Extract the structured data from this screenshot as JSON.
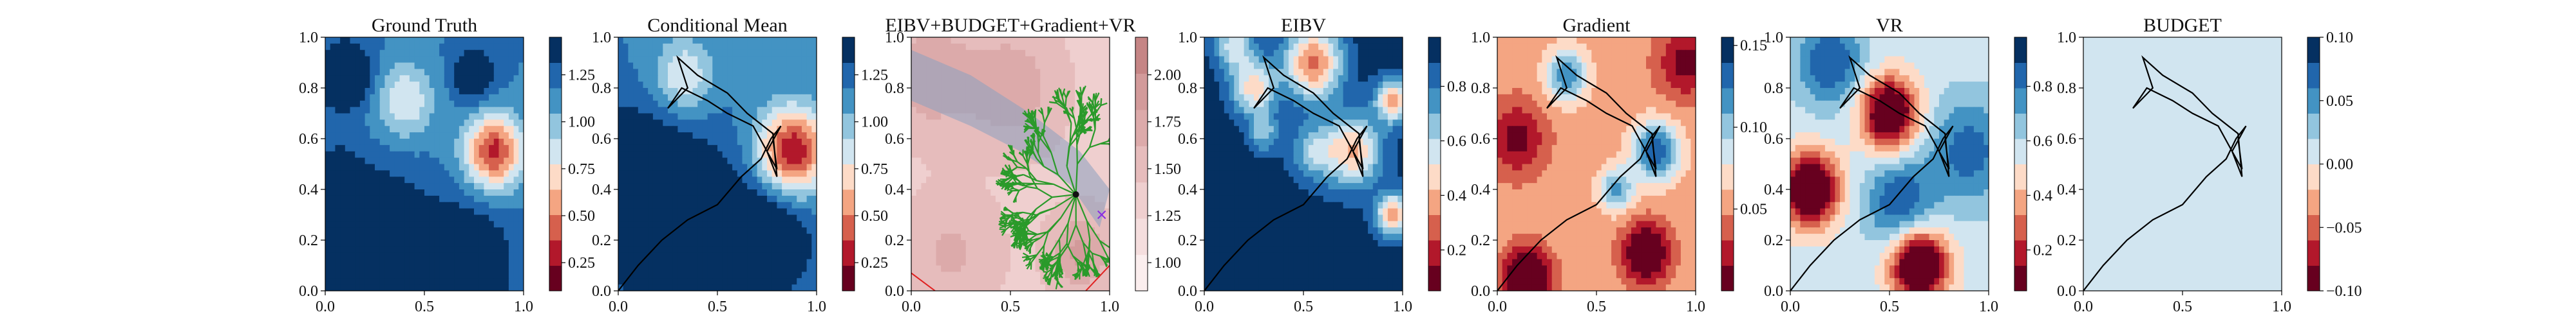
{
  "chart_data": [
    {
      "type": "heatmap",
      "title": "Ground Truth",
      "xlim": [
        0,
        1
      ],
      "ylim": [
        0,
        1
      ],
      "xticks": [
        "0.0",
        "0.5",
        "1.0"
      ],
      "yticks": [
        "0.0",
        "0.2",
        "0.4",
        "0.6",
        "0.8",
        "1.0"
      ],
      "colorbar": {
        "range": [
          0.1,
          1.45
        ],
        "ticks": [
          "0.25",
          "0.50",
          "0.75",
          "1.00",
          "1.25"
        ],
        "tick_values": [
          0.25,
          0.5,
          0.75,
          1.0,
          1.25
        ],
        "colormap": "RdBu"
      },
      "field": [
        {
          "x": 0.85,
          "y": 0.55,
          "v": -0.65,
          "s": 0.1
        },
        {
          "x": 0.75,
          "y": 0.85,
          "v": 0.3,
          "s": 0.07
        },
        {
          "x": 0.4,
          "y": 0.75,
          "v": -0.3,
          "s": 0.1
        },
        {
          "x": 0.1,
          "y": 0.85,
          "v": 0.35,
          "s": 0.09
        },
        {
          "x": 0.25,
          "y": 0.15,
          "v": 0.5,
          "s": 0.18
        },
        {
          "x": 0.7,
          "y": 0.1,
          "v": 0.35,
          "s": 0.15
        },
        {
          "x": 0.05,
          "y": 0.45,
          "v": 0.15,
          "s": 0.1
        }
      ],
      "field_base": 0.8,
      "path": []
    },
    {
      "type": "heatmap",
      "title": "Conditional Mean",
      "xlim": [
        0,
        1
      ],
      "ylim": [
        0,
        1
      ],
      "xticks": [
        "0.0",
        "0.5",
        "1.0"
      ],
      "yticks": [
        "0.0",
        "0.2",
        "0.4",
        "0.6",
        "0.8",
        "1.0"
      ],
      "colorbar": {
        "range": [
          0.1,
          1.45
        ],
        "ticks": [
          "0.25",
          "0.50",
          "0.75",
          "1.00",
          "1.25"
        ],
        "tick_values": [
          0.25,
          0.5,
          0.75,
          1.0,
          1.25
        ],
        "colormap": "RdBu"
      },
      "field": [
        {
          "x": 0.88,
          "y": 0.55,
          "v": -0.7,
          "s": 0.12
        },
        {
          "x": 0.33,
          "y": 0.85,
          "v": -0.3,
          "s": 0.1
        },
        {
          "x": 0.3,
          "y": 0.25,
          "v": 0.55,
          "s": 0.2
        },
        {
          "x": 0.75,
          "y": 0.2,
          "v": 0.3,
          "s": 0.15
        },
        {
          "x": 0.05,
          "y": 0.5,
          "v": 0.25,
          "s": 0.15
        }
      ],
      "field_base": 0.8,
      "path": [
        [
          0.0,
          0.0
        ],
        [
          0.1,
          0.1
        ],
        [
          0.22,
          0.2
        ],
        [
          0.35,
          0.28
        ],
        [
          0.5,
          0.34
        ],
        [
          0.62,
          0.45
        ],
        [
          0.72,
          0.52
        ],
        [
          0.77,
          0.6
        ],
        [
          0.82,
          0.65
        ],
        [
          0.75,
          0.55
        ],
        [
          0.8,
          0.45
        ],
        [
          0.78,
          0.62
        ],
        [
          0.65,
          0.7
        ],
        [
          0.55,
          0.78
        ],
        [
          0.4,
          0.85
        ],
        [
          0.3,
          0.92
        ],
        [
          0.35,
          0.8
        ],
        [
          0.25,
          0.72
        ],
        [
          0.32,
          0.8
        ],
        [
          0.45,
          0.75
        ],
        [
          0.55,
          0.7
        ],
        [
          0.68,
          0.65
        ],
        [
          0.75,
          0.55
        ],
        [
          0.8,
          0.48
        ],
        [
          0.78,
          0.6
        ]
      ]
    },
    {
      "type": "heatmap",
      "title": "EIBV+BUDGET+Gradient+VR",
      "xlim": [
        0,
        1
      ],
      "ylim": [
        0,
        1
      ],
      "xticks": [
        "0.0",
        "0.5",
        "1.0"
      ],
      "yticks": [
        "0.0",
        "0.2",
        "0.4",
        "0.6",
        "0.8",
        "1.0"
      ],
      "colorbar": {
        "range": [
          0.85,
          2.2
        ],
        "ticks": [
          "1.00",
          "1.25",
          "1.50",
          "1.75",
          "2.00"
        ],
        "tick_values": [
          1.0,
          1.25,
          1.5,
          1.75,
          2.0
        ],
        "colormap": "pink_r"
      },
      "field": [
        {
          "x": 0.1,
          "y": 0.85,
          "v": 0.3,
          "s": 0.15
        },
        {
          "x": 0.5,
          "y": 0.8,
          "v": 0.3,
          "s": 0.15
        },
        {
          "x": 0.85,
          "y": 0.15,
          "v": 0.35,
          "s": 0.1
        },
        {
          "x": 0.2,
          "y": 0.15,
          "v": 0.2,
          "s": 0.15
        }
      ],
      "field_base": 0.9,
      "gray_region": [
        [
          0.0,
          0.75
        ],
        [
          0.3,
          0.65
        ],
        [
          0.55,
          0.55
        ],
        [
          0.8,
          0.42
        ],
        [
          0.95,
          0.25
        ],
        [
          1.0,
          0.4
        ],
        [
          0.85,
          0.55
        ],
        [
          0.6,
          0.7
        ],
        [
          0.3,
          0.85
        ],
        [
          0.0,
          0.95
        ]
      ],
      "tree_root": [
        0.83,
        0.38
      ],
      "markers": [
        {
          "x": 0.83,
          "y": 0.38,
          "symbol": "star"
        },
        {
          "x": 0.96,
          "y": 0.3,
          "symbol": "x"
        }
      ],
      "path": []
    },
    {
      "type": "heatmap",
      "title": "EIBV",
      "xlim": [
        0,
        1
      ],
      "ylim": [
        0,
        1
      ],
      "xticks": [
        "0.0",
        "0.5",
        "1.0"
      ],
      "yticks": [
        "0.0",
        "0.2",
        "0.4",
        "0.6",
        "0.8",
        "1.0"
      ],
      "colorbar": {
        "range": [
          0.05,
          0.98
        ],
        "ticks": [
          "0.2",
          "0.4",
          "0.6",
          "0.8"
        ],
        "tick_values": [
          0.2,
          0.4,
          0.6,
          0.8
        ],
        "colormap": "RdBu"
      },
      "field": [
        {
          "x": 0.55,
          "y": 0.9,
          "v": -0.7,
          "s": 0.1
        },
        {
          "x": 0.75,
          "y": 0.55,
          "v": -0.55,
          "s": 0.1
        },
        {
          "x": 0.25,
          "y": 0.8,
          "v": -0.5,
          "s": 0.08
        },
        {
          "x": 0.95,
          "y": 0.75,
          "v": -0.6,
          "s": 0.06
        },
        {
          "x": 0.95,
          "y": 0.3,
          "v": -0.6,
          "s": 0.06
        },
        {
          "x": 0.55,
          "y": 0.55,
          "v": -0.3,
          "s": 0.08
        },
        {
          "x": 0.3,
          "y": 0.62,
          "v": -0.3,
          "s": 0.05
        },
        {
          "x": 0.15,
          "y": 0.97,
          "v": -0.4,
          "s": 0.07
        }
      ],
      "field_base": 0.95,
      "path": [
        [
          0.0,
          0.0
        ],
        [
          0.1,
          0.1
        ],
        [
          0.22,
          0.2
        ],
        [
          0.35,
          0.28
        ],
        [
          0.5,
          0.34
        ],
        [
          0.62,
          0.45
        ],
        [
          0.72,
          0.52
        ],
        [
          0.77,
          0.6
        ],
        [
          0.82,
          0.65
        ],
        [
          0.75,
          0.55
        ],
        [
          0.8,
          0.45
        ],
        [
          0.78,
          0.62
        ],
        [
          0.65,
          0.7
        ],
        [
          0.55,
          0.78
        ],
        [
          0.4,
          0.85
        ],
        [
          0.3,
          0.92
        ],
        [
          0.35,
          0.8
        ],
        [
          0.25,
          0.72
        ],
        [
          0.32,
          0.8
        ],
        [
          0.45,
          0.75
        ],
        [
          0.55,
          0.7
        ],
        [
          0.68,
          0.65
        ],
        [
          0.75,
          0.55
        ],
        [
          0.8,
          0.48
        ],
        [
          0.78,
          0.6
        ]
      ]
    },
    {
      "type": "heatmap",
      "title": "Gradient",
      "xlim": [
        0,
        1
      ],
      "ylim": [
        0,
        1
      ],
      "xticks": [
        "0.0",
        "0.5",
        "1.0"
      ],
      "yticks": [
        "0.0",
        "0.2",
        "0.4",
        "0.6",
        "0.8",
        "1.0"
      ],
      "colorbar": {
        "range": [
          0.0,
          0.155
        ],
        "ticks": [
          "0.05",
          "0.10",
          "0.15"
        ],
        "tick_values": [
          0.05,
          0.1,
          0.15
        ],
        "colormap": "RdBu"
      },
      "field": [
        {
          "x": 0.8,
          "y": 0.55,
          "v": 0.55,
          "s": 0.08
        },
        {
          "x": 0.35,
          "y": 0.85,
          "v": 0.45,
          "s": 0.07
        },
        {
          "x": 0.6,
          "y": 0.4,
          "v": 0.4,
          "s": 0.06
        },
        {
          "x": 0.15,
          "y": 0.05,
          "v": -0.55,
          "s": 0.08
        },
        {
          "x": 0.75,
          "y": 0.15,
          "v": -0.5,
          "s": 0.08
        },
        {
          "x": 0.1,
          "y": 0.6,
          "v": -0.3,
          "s": 0.1
        },
        {
          "x": 0.95,
          "y": 0.9,
          "v": -0.3,
          "s": 0.1
        }
      ],
      "field_base": 0.35,
      "path": [
        [
          0.0,
          0.0
        ],
        [
          0.1,
          0.1
        ],
        [
          0.22,
          0.2
        ],
        [
          0.35,
          0.28
        ],
        [
          0.5,
          0.34
        ],
        [
          0.62,
          0.45
        ],
        [
          0.72,
          0.52
        ],
        [
          0.77,
          0.6
        ],
        [
          0.82,
          0.65
        ],
        [
          0.75,
          0.55
        ],
        [
          0.8,
          0.45
        ],
        [
          0.78,
          0.62
        ],
        [
          0.65,
          0.7
        ],
        [
          0.55,
          0.78
        ],
        [
          0.4,
          0.85
        ],
        [
          0.3,
          0.92
        ],
        [
          0.35,
          0.8
        ],
        [
          0.25,
          0.72
        ],
        [
          0.32,
          0.8
        ],
        [
          0.45,
          0.75
        ],
        [
          0.55,
          0.7
        ],
        [
          0.68,
          0.65
        ],
        [
          0.75,
          0.55
        ],
        [
          0.8,
          0.48
        ],
        [
          0.78,
          0.6
        ]
      ]
    },
    {
      "type": "heatmap",
      "title": "VR",
      "xlim": [
        0,
        1
      ],
      "ylim": [
        0,
        1
      ],
      "xticks": [
        "0.0",
        "0.5",
        "1.0"
      ],
      "yticks": [
        "0.0",
        "0.2",
        "0.4",
        "0.6",
        "0.8",
        "1.0"
      ],
      "colorbar": {
        "range": [
          0.05,
          0.98
        ],
        "ticks": [
          "0.2",
          "0.4",
          "0.6",
          "0.8"
        ],
        "tick_values": [
          0.2,
          0.4,
          0.6,
          0.8
        ],
        "colormap": "RdBu"
      },
      "field": [
        {
          "x": 0.1,
          "y": 0.4,
          "v": -0.75,
          "s": 0.1
        },
        {
          "x": 0.5,
          "y": 0.7,
          "v": -0.7,
          "s": 0.1
        },
        {
          "x": 0.65,
          "y": 0.1,
          "v": -0.75,
          "s": 0.1
        },
        {
          "x": 0.9,
          "y": 0.55,
          "v": 0.3,
          "s": 0.15
        },
        {
          "x": 0.2,
          "y": 0.9,
          "v": 0.35,
          "s": 0.12
        },
        {
          "x": 0.55,
          "y": 0.35,
          "v": 0.35,
          "s": 0.12
        }
      ],
      "field_base": 0.55,
      "path": [
        [
          0.0,
          0.0
        ],
        [
          0.1,
          0.1
        ],
        [
          0.22,
          0.2
        ],
        [
          0.35,
          0.28
        ],
        [
          0.5,
          0.34
        ],
        [
          0.62,
          0.45
        ],
        [
          0.72,
          0.52
        ],
        [
          0.77,
          0.6
        ],
        [
          0.82,
          0.65
        ],
        [
          0.75,
          0.55
        ],
        [
          0.8,
          0.45
        ],
        [
          0.78,
          0.62
        ],
        [
          0.65,
          0.7
        ],
        [
          0.55,
          0.78
        ],
        [
          0.4,
          0.85
        ],
        [
          0.3,
          0.92
        ],
        [
          0.35,
          0.8
        ],
        [
          0.25,
          0.72
        ],
        [
          0.32,
          0.8
        ],
        [
          0.45,
          0.75
        ],
        [
          0.55,
          0.7
        ],
        [
          0.68,
          0.65
        ],
        [
          0.75,
          0.55
        ],
        [
          0.8,
          0.48
        ],
        [
          0.78,
          0.6
        ]
      ]
    },
    {
      "type": "heatmap",
      "title": "BUDGET",
      "xlim": [
        0,
        1
      ],
      "ylim": [
        0,
        1
      ],
      "xticks": [
        "0.0",
        "0.5",
        "1.0"
      ],
      "yticks": [
        "0.0",
        "0.2",
        "0.4",
        "0.6",
        "0.8",
        "1.0"
      ],
      "colorbar": {
        "range": [
          -0.1,
          0.1
        ],
        "ticks": [
          "−0.10",
          "−0.05",
          "0.00",
          "0.05",
          "0.10"
        ],
        "tick_values": [
          -0.1,
          -0.05,
          0.0,
          0.05,
          0.1
        ],
        "colormap": "RdBu"
      },
      "field": [],
      "field_base": 0.52,
      "path": [
        [
          0.0,
          0.0
        ],
        [
          0.1,
          0.1
        ],
        [
          0.22,
          0.2
        ],
        [
          0.35,
          0.28
        ],
        [
          0.5,
          0.34
        ],
        [
          0.62,
          0.45
        ],
        [
          0.72,
          0.52
        ],
        [
          0.77,
          0.6
        ],
        [
          0.82,
          0.65
        ],
        [
          0.75,
          0.55
        ],
        [
          0.8,
          0.45
        ],
        [
          0.78,
          0.62
        ],
        [
          0.65,
          0.7
        ],
        [
          0.55,
          0.78
        ],
        [
          0.4,
          0.85
        ],
        [
          0.3,
          0.92
        ],
        [
          0.35,
          0.8
        ],
        [
          0.25,
          0.72
        ],
        [
          0.32,
          0.8
        ],
        [
          0.45,
          0.75
        ],
        [
          0.55,
          0.7
        ],
        [
          0.68,
          0.65
        ],
        [
          0.75,
          0.55
        ],
        [
          0.8,
          0.48
        ],
        [
          0.78,
          0.6
        ]
      ]
    }
  ]
}
